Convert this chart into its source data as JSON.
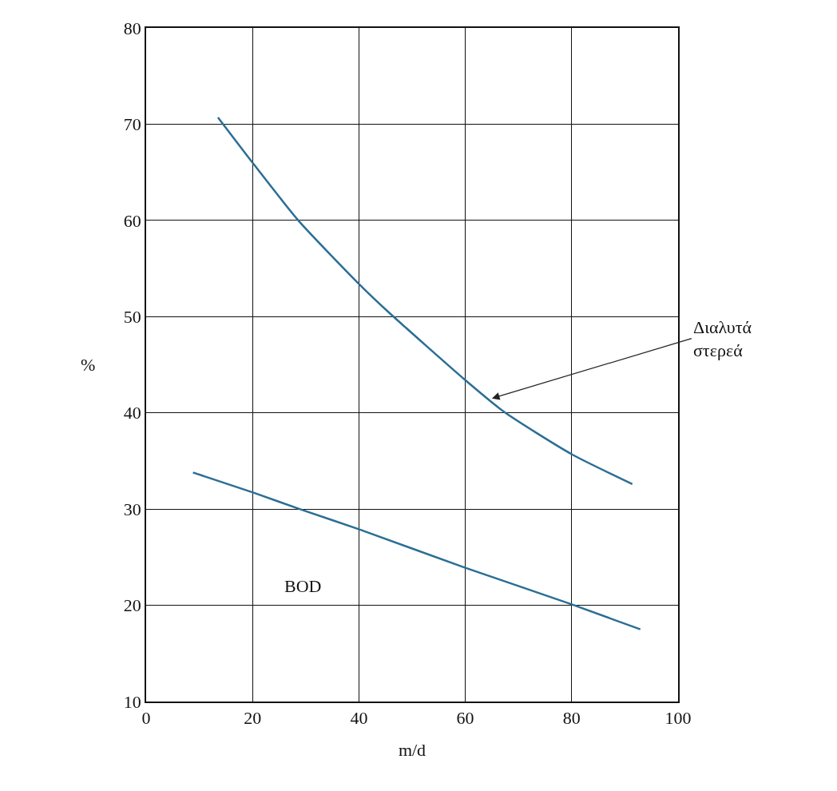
{
  "chart_data": {
    "type": "line",
    "xlabel": "m/d",
    "ylabel": "%",
    "xlim": [
      0,
      100
    ],
    "xticks": [
      0,
      20,
      40,
      60,
      80,
      100
    ],
    "ylim": [
      10,
      80
    ],
    "yticks": [
      10,
      20,
      30,
      40,
      50,
      60,
      70,
      80
    ],
    "grid": true,
    "legend": false,
    "marker": "none",
    "line_style": "solid",
    "series": [
      {
        "color": "#2b6e94",
        "x": [
          13.5,
          20,
          28.6,
          40,
          45.5,
          60,
          67.3,
          80,
          91.4
        ],
        "values": [
          70.7,
          66.0,
          60.0,
          53.4,
          50.5,
          43.4,
          40.1,
          35.7,
          32.6
        ]
      },
      {
        "name": "BOD",
        "color": "#2b6e94",
        "x": [
          8.8,
          20.2,
          29.4,
          40,
          60,
          80,
          92.9
        ],
        "values": [
          33.8,
          31.7,
          29.9,
          27.9,
          23.9,
          20.1,
          17.5
        ]
      }
    ],
    "annotations": [
      {
        "text": "Διαλυτά στερεά",
        "x": 65,
        "y": 41.5
      }
    ]
  }
}
